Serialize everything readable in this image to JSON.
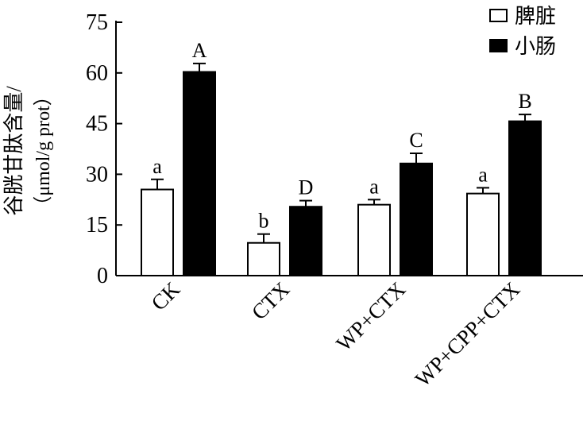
{
  "chart_data": {
    "type": "bar",
    "title": "",
    "ylabel_line1": "谷胱甘肽含量/",
    "ylabel_line2": "（μmol/g prot）",
    "xlabel": "",
    "ylim": [
      0,
      75
    ],
    "yticks": [
      0,
      15,
      30,
      45,
      60,
      75
    ],
    "categories": [
      "CK",
      "CTX",
      "WP+CTX",
      "WP+CPP+CTX"
    ],
    "series": [
      {
        "name": "脾脏",
        "fill": "#ffffff",
        "values": [
          25.5,
          9.7,
          21.0,
          24.3
        ],
        "errors": [
          3.0,
          2.6,
          1.5,
          1.7
        ],
        "labels": [
          "a",
          "b",
          "a",
          "a"
        ]
      },
      {
        "name": "小肠",
        "fill": "#000000",
        "values": [
          60.3,
          20.4,
          33.2,
          45.7
        ],
        "errors": [
          2.5,
          1.8,
          3.0,
          2.0
        ],
        "labels": [
          "A",
          "D",
          "C",
          "B"
        ]
      }
    ],
    "legend_position": "top-right",
    "grid": false
  }
}
